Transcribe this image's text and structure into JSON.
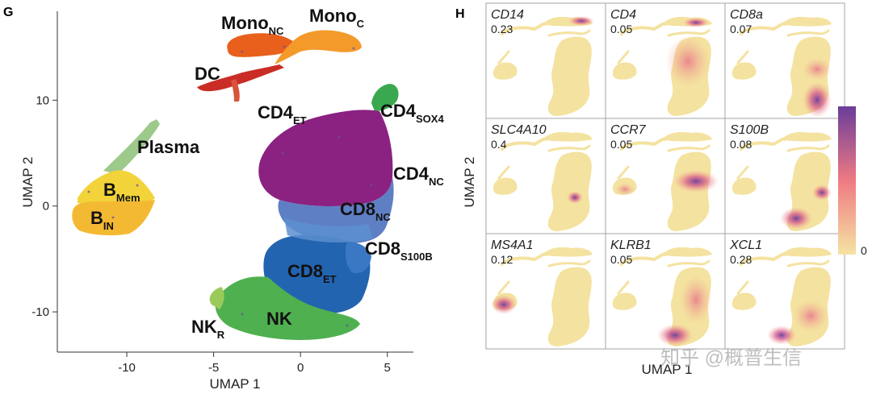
{
  "panels": {
    "g_letter": "G",
    "h_letter": "H"
  },
  "chart_data": [
    {
      "type": "scatter",
      "panel": "G",
      "xlabel": "UMAP 1",
      "ylabel": "UMAP 2",
      "xlim": [
        -14,
        6.5
      ],
      "ylim": [
        -13.8,
        18.4
      ],
      "xticks": [
        -10,
        -5,
        0,
        5
      ],
      "yticks": [
        -10,
        0,
        10
      ],
      "clusters": [
        {
          "id": "mono_nc",
          "base": "Mono",
          "sub": "NC",
          "color": "#e8601c"
        },
        {
          "id": "mono_c",
          "base": "Mono",
          "sub": "C",
          "color": "#f39a2b"
        },
        {
          "id": "dc",
          "base": "DC",
          "sub": "",
          "color": "#c92d25"
        },
        {
          "id": "plasma",
          "base": "Plasma",
          "sub": "",
          "color": "#9dc98a"
        },
        {
          "id": "b_mem",
          "base": "B",
          "sub": "Mem",
          "color": "#f2d43a"
        },
        {
          "id": "b_in",
          "base": "B",
          "sub": "IN",
          "color": "#f4b933"
        },
        {
          "id": "cd4_et",
          "base": "CD4",
          "sub": "ET",
          "color": "#8b2181"
        },
        {
          "id": "cd4_sox4",
          "base": "CD4",
          "sub": "SOX4",
          "color": "#3aa84e"
        },
        {
          "id": "cd4_nc",
          "base": "CD4",
          "sub": "NC",
          "color": "#5f7fc4"
        },
        {
          "id": "cd8_nc",
          "base": "CD8",
          "sub": "NC",
          "color": "#5c8fd0"
        },
        {
          "id": "cd8_s100b",
          "base": "CD8",
          "sub": "S100B",
          "color": "#3a78c4"
        },
        {
          "id": "cd8_et",
          "base": "CD8",
          "sub": "ET",
          "color": "#2364b0"
        },
        {
          "id": "nk",
          "base": "NK",
          "sub": "",
          "color": "#4fb050"
        },
        {
          "id": "nk_r",
          "base": "NK",
          "sub": "R",
          "color": "#9acb5a"
        }
      ]
    },
    {
      "type": "heatmap",
      "panel": "H",
      "xlabel": "UMAP 1",
      "ylabel": "UMAP 2",
      "colorbar": {
        "min_label": "0",
        "low_color": "#f5e3a3",
        "mid_color": "#ef7a82",
        "high_color": "#6a3d9a"
      },
      "genes": [
        {
          "name": "CD14",
          "value": "0.23"
        },
        {
          "name": "CD4",
          "value": "0.05"
        },
        {
          "name": "CD8a",
          "value": "0.07"
        },
        {
          "name": "SLC4A10",
          "value": "0.4"
        },
        {
          "name": "CCR7",
          "value": "0.05"
        },
        {
          "name": "S100B",
          "value": "0.08"
        },
        {
          "name": "MS4A1",
          "value": "0.12"
        },
        {
          "name": "KLRB1",
          "value": "0.05"
        },
        {
          "name": "XCL1",
          "value": "0.28"
        }
      ]
    }
  ],
  "watermark": "知乎 @概普生信"
}
